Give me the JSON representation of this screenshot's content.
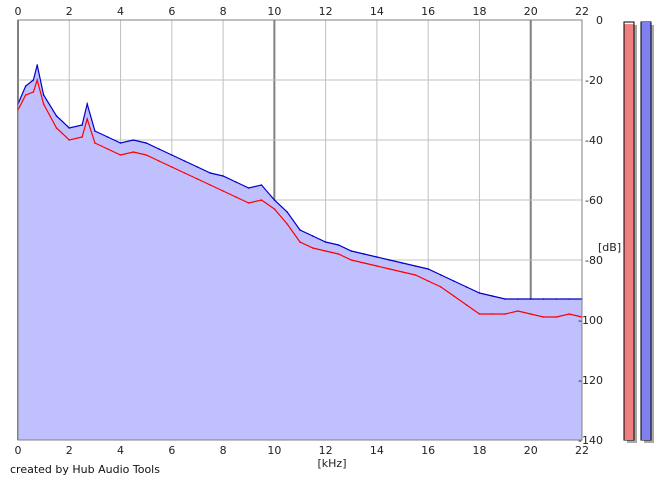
{
  "credit": "created by Hub Audio Tools",
  "colors": {
    "left_channel": "#ff0000",
    "right_channel": "#0000cc",
    "area_fill": "#c0c0ff",
    "meter_left": "#f08080",
    "meter_right": "#8080f0",
    "grid": "#c0c0c0",
    "grid_major": "#808080"
  },
  "chart_data": {
    "type": "area",
    "xlabel": "[kHz]",
    "ylabel": "[dB]",
    "xlim": [
      0,
      22
    ],
    "ylim": [
      -140,
      0
    ],
    "x_ticks": [
      "0",
      "2",
      "4",
      "6",
      "8",
      "10",
      "12",
      "14",
      "16",
      "18",
      "20",
      "22"
    ],
    "y_ticks": [
      "0",
      "-20",
      "-40",
      "-60",
      "-80",
      "-100",
      "-120",
      "-140"
    ],
    "x_tick_values": [
      0,
      2,
      4,
      6,
      8,
      10,
      12,
      14,
      16,
      18,
      20,
      22
    ],
    "y_tick_values": [
      0,
      -20,
      -40,
      -60,
      -80,
      -100,
      -120,
      -140
    ],
    "grid": true,
    "x_ticks_top": true,
    "y_axis_side": "right",
    "series": [
      {
        "color": "#0000cc",
        "x": [
          0,
          0.3,
          0.6,
          0.75,
          1,
          1.5,
          2,
          2.5,
          2.7,
          3,
          3.5,
          4,
          4.5,
          5,
          5.5,
          6,
          6.5,
          7,
          7.5,
          8,
          8.5,
          9,
          9.5,
          10,
          10.5,
          11,
          11.5,
          12,
          12.5,
          13,
          13.5,
          14,
          14.5,
          15,
          15.5,
          16,
          16.5,
          17,
          17.5,
          18,
          18.5,
          19,
          19.5,
          20,
          20.5,
          21,
          21.5,
          22
        ],
        "y": [
          -28,
          -22,
          -20,
          -15,
          -25,
          -32,
          -36,
          -35,
          -28,
          -37,
          -39,
          -41,
          -40,
          -41,
          -43,
          -45,
          -47,
          -49,
          -51,
          -52,
          -54,
          -56,
          -55,
          -60,
          -64,
          -70,
          -72,
          -74,
          -75,
          -77,
          -78,
          -79,
          -80,
          -81,
          -82,
          -83,
          -85,
          -87,
          -89,
          -91,
          -92,
          -93,
          -93,
          -93,
          -93,
          -93,
          -93,
          -93
        ]
      },
      {
        "color": "#ff0000",
        "x": [
          0,
          0.3,
          0.6,
          0.75,
          1,
          1.5,
          2,
          2.5,
          2.7,
          3,
          3.5,
          4,
          4.5,
          5,
          5.5,
          6,
          6.5,
          7,
          7.5,
          8,
          8.5,
          9,
          9.5,
          10,
          10.5,
          11,
          11.5,
          12,
          12.5,
          13,
          13.5,
          14,
          14.5,
          15,
          15.5,
          16,
          16.5,
          17,
          17.5,
          18,
          18.5,
          19,
          19.5,
          20,
          20.5,
          21,
          21.5,
          22
        ],
        "y": [
          -30,
          -25,
          -24,
          -20,
          -28,
          -36,
          -40,
          -39,
          -33,
          -41,
          -43,
          -45,
          -44,
          -45,
          -47,
          -49,
          -51,
          -53,
          -55,
          -57,
          -59,
          -61,
          -60,
          -63,
          -68,
          -74,
          -76,
          -77,
          -78,
          -80,
          -81,
          -82,
          -83,
          -84,
          -85,
          -87,
          -89,
          -92,
          -95,
          -98,
          -98,
          -98,
          -97,
          -98,
          -99,
          -99,
          -98,
          -99
        ]
      }
    ],
    "level_meters": [
      {
        "color": "#f08080",
        "fraction": 0.995
      },
      {
        "color": "#8080f0",
        "fraction": 1.0
      }
    ]
  }
}
